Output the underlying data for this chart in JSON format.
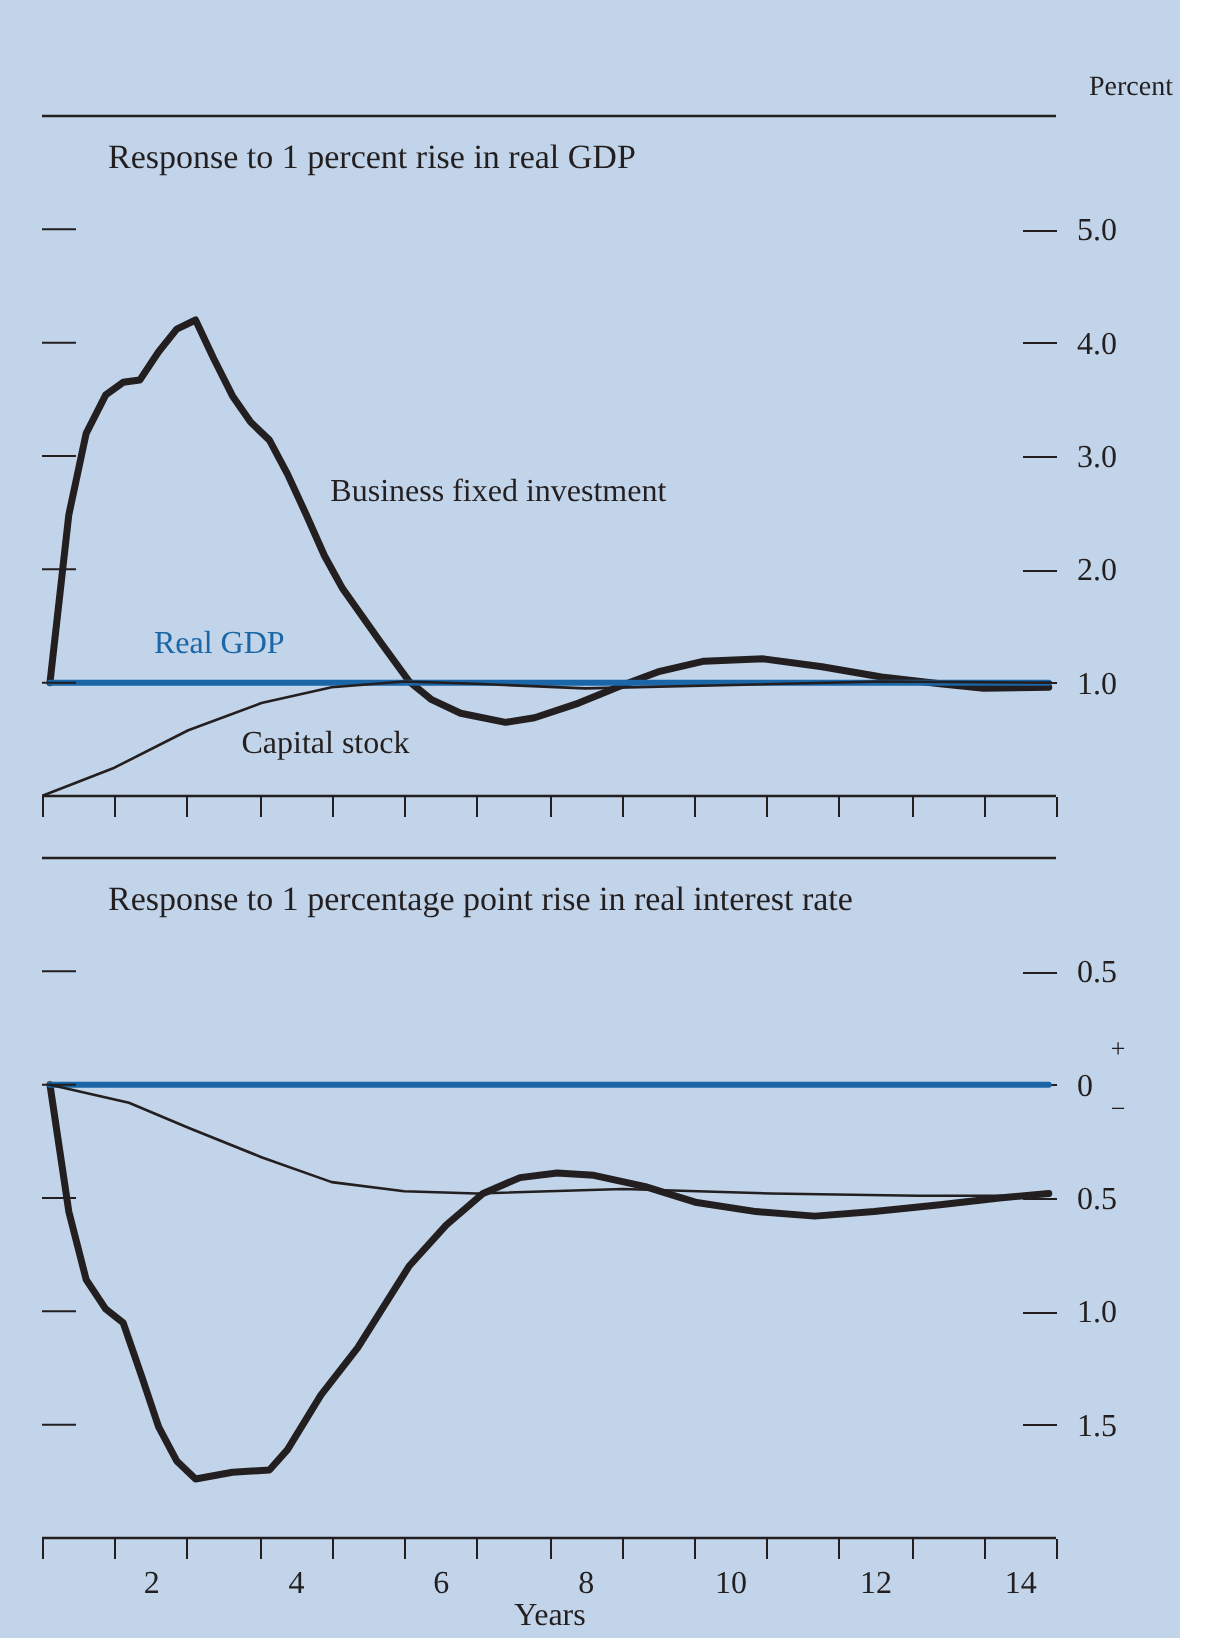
{
  "chart_data": [
    {
      "type": "line",
      "title": "Response to 1 percent rise in real GDP",
      "ylabel": "Percent",
      "xlim": [
        0.5,
        14.5
      ],
      "ylim": [
        0,
        6
      ],
      "xticks": [
        {
          "value": 0.5,
          "label": null
        },
        {
          "value": 1.5,
          "label": null
        },
        {
          "value": 2.5,
          "label": null
        },
        {
          "value": 3.5,
          "label": null
        },
        {
          "value": 4.5,
          "label": null
        },
        {
          "value": 5.5,
          "label": null
        },
        {
          "value": 6.5,
          "label": null
        },
        {
          "value": 7.5,
          "label": null
        },
        {
          "value": 8.5,
          "label": null
        },
        {
          "value": 9.5,
          "label": null
        },
        {
          "value": 10.5,
          "label": null
        },
        {
          "value": 11.5,
          "label": null
        },
        {
          "value": 12.5,
          "label": null
        },
        {
          "value": 13.5,
          "label": null
        },
        {
          "value": 14.5,
          "label": null
        }
      ],
      "yticks": [
        {
          "value": 1,
          "label": "1.0"
        },
        {
          "value": 2,
          "label": "2.0"
        },
        {
          "value": 3,
          "label": "3.0"
        },
        {
          "value": 4,
          "label": "4.0"
        },
        {
          "value": 5,
          "label": "5.0"
        }
      ],
      "tick_labels": "y",
      "grid": false,
      "series": [
        {
          "name": "Business fixed investment",
          "color": "#231f20",
          "x": [
            0.61,
            0.87,
            1.11,
            1.38,
            1.62,
            1.85,
            2.11,
            2.36,
            2.62,
            2.87,
            3.13,
            3.38,
            3.64,
            3.89,
            4.15,
            4.4,
            4.65,
            5.16,
            5.57,
            5.88,
            6.28,
            6.9,
            7.3,
            7.91,
            8.52,
            9.03,
            9.64,
            10.46,
            11.27,
            12.09,
            12.9,
            13.5,
            14.4
          ],
          "values": [
            1.0,
            2.48,
            3.2,
            3.54,
            3.65,
            3.67,
            3.92,
            4.12,
            4.2,
            3.86,
            3.53,
            3.3,
            3.14,
            2.84,
            2.48,
            2.12,
            1.83,
            1.37,
            1.01,
            0.85,
            0.73,
            0.65,
            0.69,
            0.82,
            0.98,
            1.1,
            1.19,
            1.21,
            1.14,
            1.05,
            0.99,
            0.95,
            0.96
          ]
        },
        {
          "name": "Real GDP",
          "color": "#1a66a6",
          "x": [
            0.61,
            14.4
          ],
          "values": [
            1.0,
            1.0
          ]
        },
        {
          "name": "Capital stock",
          "color": "#231f20",
          "x": [
            0.5,
            1.5,
            2.52,
            3.53,
            4.5,
            5.5,
            6.49,
            8.0,
            10.05,
            12.09,
            14.43
          ],
          "values": [
            0,
            0.25,
            0.58,
            0.82,
            0.96,
            1.01,
            0.99,
            0.95,
            0.98,
            1.01,
            1.0
          ]
        }
      ]
    },
    {
      "type": "line",
      "title": "Response to 1 percentage point rise in real interest rate",
      "xlabel": "Years",
      "xlim": [
        0.5,
        14.5
      ],
      "ylim": [
        -2,
        1
      ],
      "xticks": [
        {
          "value": 0.5,
          "label": null
        },
        {
          "value": 1.5,
          "label": null
        },
        {
          "value": 2,
          "label": "2"
        },
        {
          "value": 2.5,
          "label": null
        },
        {
          "value": 3.5,
          "label": null
        },
        {
          "value": 4,
          "label": "4"
        },
        {
          "value": 4.5,
          "label": null
        },
        {
          "value": 5.5,
          "label": null
        },
        {
          "value": 6,
          "label": "6"
        },
        {
          "value": 6.5,
          "label": null
        },
        {
          "value": 7.5,
          "label": null
        },
        {
          "value": 8,
          "label": "8"
        },
        {
          "value": 8.5,
          "label": null
        },
        {
          "value": 9.5,
          "label": null
        },
        {
          "value": 10,
          "label": "10"
        },
        {
          "value": 10.5,
          "label": null
        },
        {
          "value": 11.5,
          "label": null
        },
        {
          "value": 12,
          "label": "12"
        },
        {
          "value": 12.5,
          "label": null
        },
        {
          "value": 13.5,
          "label": null
        },
        {
          "value": 14,
          "label": "14"
        },
        {
          "value": 14.5,
          "label": null
        }
      ],
      "yticks": [
        {
          "value": -1.5,
          "label": "1.5"
        },
        {
          "value": -1,
          "label": "1.0"
        },
        {
          "value": -0.5,
          "label": "0.5"
        },
        {
          "value": 0,
          "label": "0"
        },
        {
          "value": 0.5,
          "label": "0.5"
        }
      ],
      "annotations": [
        "+",
        "−"
      ],
      "grid": false,
      "series": [
        {
          "color": "#231f20",
          "x": [
            0.61,
            0.87,
            1.11,
            1.38,
            1.62,
            1.88,
            2.11,
            2.36,
            2.62,
            3.13,
            3.64,
            3.89,
            4.35,
            4.86,
            5.57,
            6.08,
            6.59,
            7.1,
            7.61,
            8.12,
            8.83,
            9.54,
            10.36,
            11.17,
            11.99,
            12.9,
            13.72,
            14.4
          ],
          "values": [
            0,
            -0.56,
            -0.86,
            -0.99,
            -1.05,
            -1.29,
            -1.51,
            -1.66,
            -1.74,
            -1.71,
            -1.7,
            -1.61,
            -1.37,
            -1.16,
            -0.8,
            -0.62,
            -0.48,
            -0.41,
            -0.39,
            -0.4,
            -0.45,
            -0.52,
            -0.56,
            -0.58,
            -0.56,
            -0.53,
            -0.5,
            -0.48
          ]
        },
        {
          "color": "#1a66a6",
          "x": [
            0.61,
            14.4
          ],
          "values": [
            0,
            0
          ]
        },
        {
          "color": "#231f20",
          "x": [
            0.61,
            1.7,
            2.52,
            3.53,
            4.5,
            5.5,
            6.5,
            8.52,
            10.56,
            12.6,
            14.4
          ],
          "values": [
            0,
            -0.08,
            -0.19,
            -0.32,
            -0.43,
            -0.47,
            -0.48,
            -0.46,
            -0.48,
            -0.49,
            -0.49
          ]
        }
      ]
    }
  ]
}
